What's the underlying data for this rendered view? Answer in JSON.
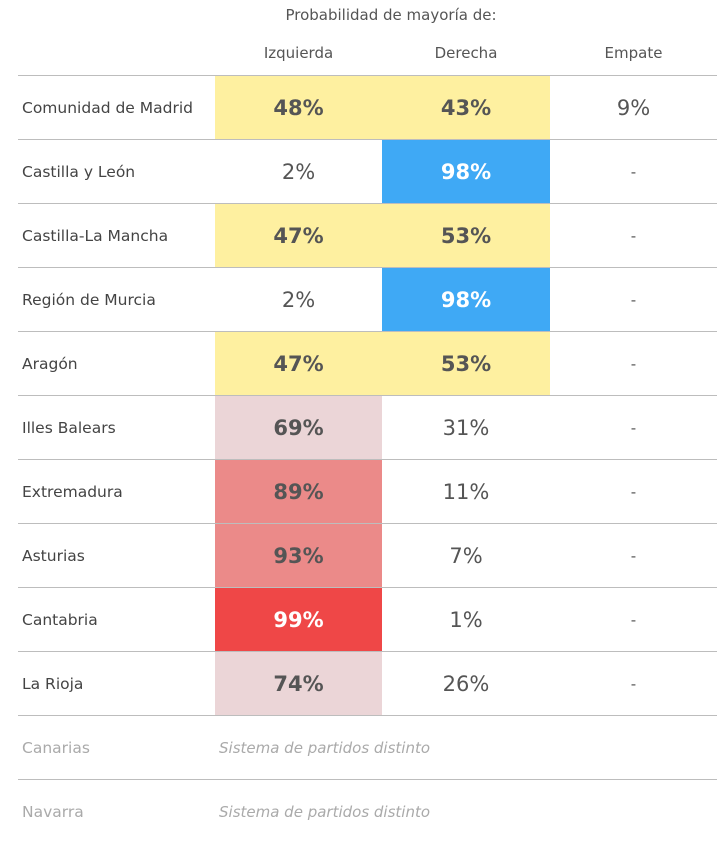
{
  "chart_data": {
    "type": "table",
    "title": "Probabilidad de mayoría de:",
    "columns": [
      "Izquierda",
      "Derecha",
      "Empate"
    ],
    "colors": {
      "yellow": "#fef0a0",
      "blue": "#3fa9f5",
      "pink_light": "#ebd5d7",
      "red_mid": "#eb8a89",
      "red_strong": "#ef4747"
    },
    "rows": [
      {
        "region": "Comunidad de Madrid",
        "izquierda": "48%",
        "derecha": "43%",
        "empate": "9%",
        "izq_bg": "#fef0a0",
        "der_bg": "#fef0a0",
        "izq_bold": true,
        "der_bold": true,
        "izq_white": false,
        "der_white": false
      },
      {
        "region": "Castilla y León",
        "izquierda": "2%",
        "derecha": "98%",
        "empate": "-",
        "izq_bg": "",
        "der_bg": "#3fa9f5",
        "izq_bold": false,
        "der_bold": true,
        "izq_white": false,
        "der_white": true
      },
      {
        "region": "Castilla-La Mancha",
        "izquierda": "47%",
        "derecha": "53%",
        "empate": "-",
        "izq_bg": "#fef0a0",
        "der_bg": "#fef0a0",
        "izq_bold": true,
        "der_bold": true,
        "izq_white": false,
        "der_white": false
      },
      {
        "region": "Región de Murcia",
        "izquierda": "2%",
        "derecha": "98%",
        "empate": "-",
        "izq_bg": "",
        "der_bg": "#3fa9f5",
        "izq_bold": false,
        "der_bold": true,
        "izq_white": false,
        "der_white": true
      },
      {
        "region": "Aragón",
        "izquierda": "47%",
        "derecha": "53%",
        "empate": "-",
        "izq_bg": "#fef0a0",
        "der_bg": "#fef0a0",
        "izq_bold": true,
        "der_bold": true,
        "izq_white": false,
        "der_white": false
      },
      {
        "region": "Illes Balears",
        "izquierda": "69%",
        "derecha": "31%",
        "empate": "-",
        "izq_bg": "#ebd5d7",
        "der_bg": "",
        "izq_bold": true,
        "der_bold": false,
        "izq_white": false,
        "der_white": false
      },
      {
        "region": "Extremadura",
        "izquierda": "89%",
        "derecha": "11%",
        "empate": "-",
        "izq_bg": "#eb8a89",
        "der_bg": "",
        "izq_bold": true,
        "der_bold": false,
        "izq_white": false,
        "der_white": false
      },
      {
        "region": "Asturias",
        "izquierda": "93%",
        "derecha": "7%",
        "empate": "-",
        "izq_bg": "#eb8a89",
        "der_bg": "",
        "izq_bold": true,
        "der_bold": false,
        "izq_white": false,
        "der_white": false
      },
      {
        "region": "Cantabria",
        "izquierda": "99%",
        "derecha": "1%",
        "empate": "-",
        "izq_bg": "#ef4747",
        "der_bg": "",
        "izq_bold": true,
        "der_bold": false,
        "izq_white": true,
        "der_white": false
      },
      {
        "region": "La Rioja",
        "izquierda": "74%",
        "derecha": "26%",
        "empate": "-",
        "izq_bg": "#ebd5d7",
        "der_bg": "",
        "izq_bold": true,
        "der_bold": false,
        "izq_white": false,
        "der_white": false
      }
    ],
    "excluded": [
      {
        "region": "Canarias",
        "note": "Sistema de partidos distinto"
      },
      {
        "region": "Navarra",
        "note": "Sistema de partidos distinto"
      }
    ]
  }
}
